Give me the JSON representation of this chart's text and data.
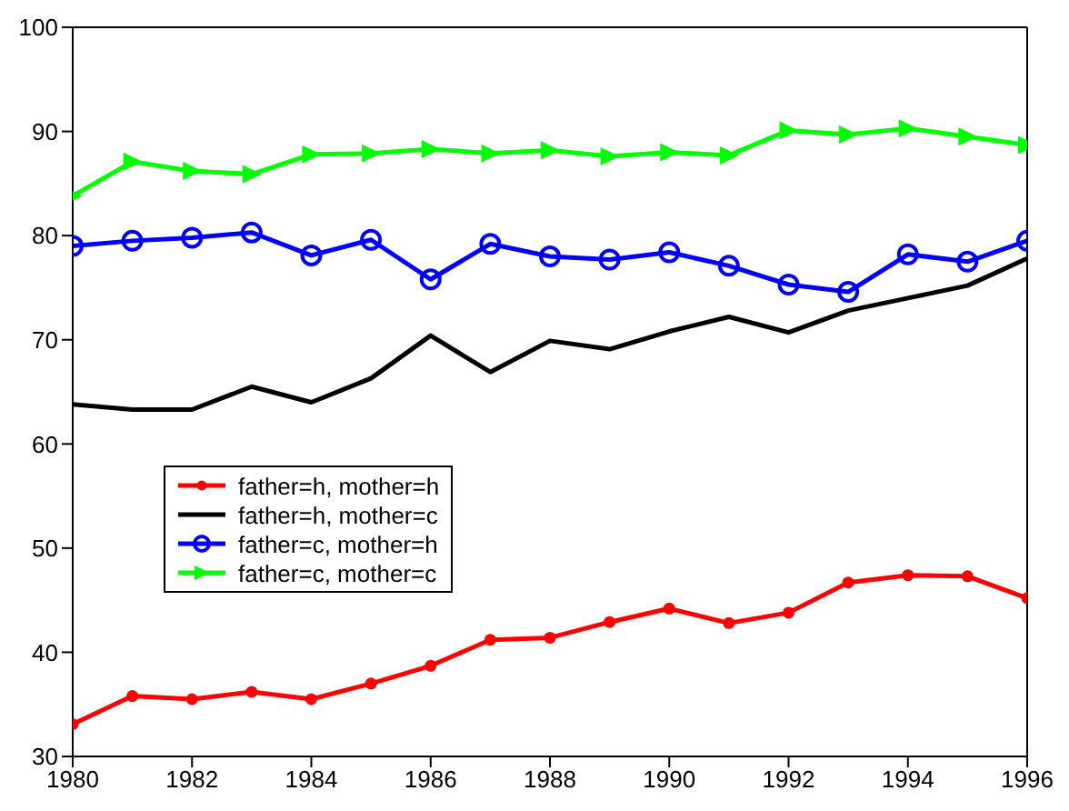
{
  "chart_data": {
    "type": "line",
    "x": [
      1980,
      1981,
      1982,
      1983,
      1984,
      1985,
      1986,
      1987,
      1988,
      1989,
      1990,
      1991,
      1992,
      1993,
      1994,
      1995,
      1996
    ],
    "xlim": [
      1980,
      1996
    ],
    "xticks": [
      1980,
      1982,
      1984,
      1986,
      1988,
      1990,
      1992,
      1994,
      1996
    ],
    "ylim": [
      30,
      100
    ],
    "yticks": [
      30,
      40,
      50,
      60,
      70,
      80,
      90,
      100
    ],
    "grid": false,
    "legend": "bottom left",
    "series": [
      {
        "name": "father=h, mother=h",
        "color": "#ff0000",
        "marker": "circle",
        "values": [
          33.1,
          35.8,
          35.5,
          36.2,
          35.5,
          37.0,
          38.7,
          41.2,
          41.4,
          42.9,
          44.2,
          42.8,
          43.8,
          46.7,
          47.4,
          47.3,
          45.2
        ]
      },
      {
        "name": "father=h, mother=c",
        "color": "#000000",
        "marker": "none",
        "values": [
          63.8,
          63.3,
          63.3,
          65.5,
          64.0,
          66.3,
          70.4,
          66.9,
          69.9,
          69.1,
          70.8,
          72.2,
          70.7,
          72.8,
          74.0,
          75.2,
          77.8
        ]
      },
      {
        "name": "father=c, mother=h",
        "color": "#0000ff",
        "marker": "open-circle",
        "values": [
          79.0,
          79.5,
          79.8,
          80.3,
          78.1,
          79.6,
          75.8,
          79.2,
          78.0,
          77.7,
          78.4,
          77.1,
          75.3,
          74.6,
          78.2,
          77.5,
          79.5
        ]
      },
      {
        "name": "father=c, mother=c",
        "color": "#00ff00",
        "marker": "triangle",
        "values": [
          83.8,
          87.1,
          86.2,
          85.9,
          87.8,
          87.9,
          88.3,
          87.9,
          88.2,
          87.6,
          88.0,
          87.7,
          90.1,
          89.7,
          90.3,
          89.5,
          88.7
        ]
      }
    ]
  }
}
